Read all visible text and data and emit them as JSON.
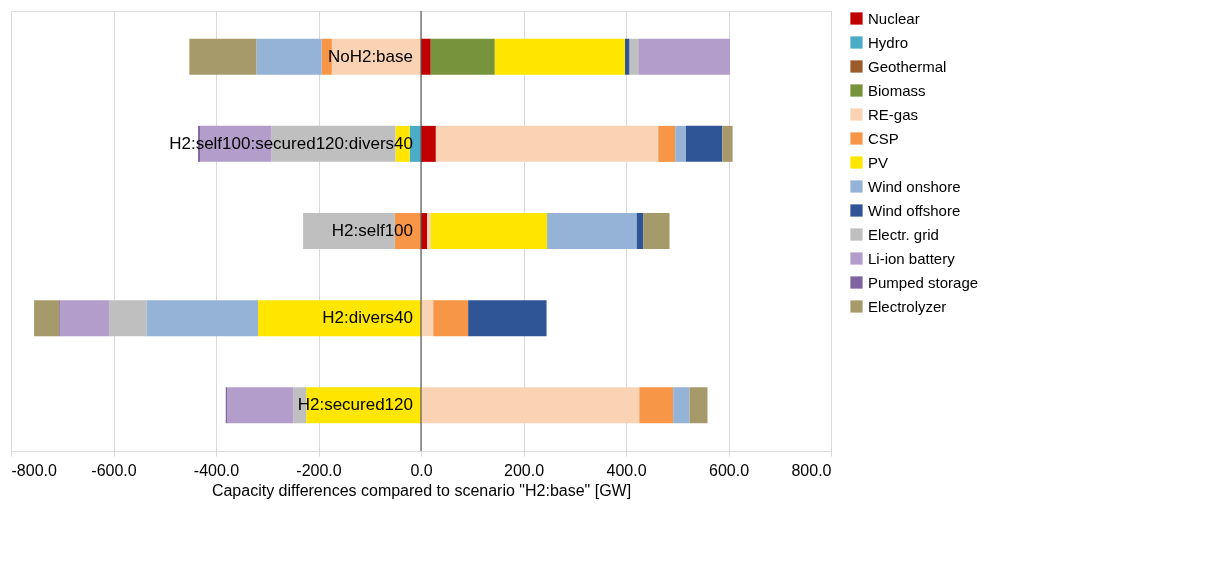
{
  "chart_data": {
    "type": "bar",
    "orientation": "horizontal",
    "stacked": true,
    "xlabel": "Capacity differences compared to scenario \"H2:base\" [GW]",
    "categories": [
      "NoH2:base",
      "H2:self100:secured120:divers40",
      "H2:self100",
      "H2:divers40",
      "H2:secured120"
    ],
    "xlim": [
      -800,
      800
    ],
    "xticks": [
      {
        "value": -800,
        "label": "-800.0"
      },
      {
        "value": -600,
        "label": "-600.0"
      },
      {
        "value": -400,
        "label": "-400.0"
      },
      {
        "value": -200,
        "label": "-200.0"
      },
      {
        "value": 0,
        "label": "0.0"
      },
      {
        "value": 200,
        "label": "200.0"
      },
      {
        "value": 400,
        "label": "400.0"
      },
      {
        "value": 600,
        "label": "600.0"
      },
      {
        "value": 800,
        "label": "800.0"
      }
    ],
    "grid": "x",
    "legend": "right",
    "series": [
      {
        "name": "Nuclear",
        "color": "#c00000",
        "values": [
          19,
          29,
          12,
          null,
          null
        ]
      },
      {
        "name": "Hydro",
        "color": "#4bacc6",
        "values": [
          null,
          -22,
          null,
          null,
          null
        ]
      },
      {
        "name": "Geothermal",
        "color": "#9c5b2a",
        "values": [
          null,
          null,
          null,
          null,
          null
        ]
      },
      {
        "name": "Biomass",
        "color": "#77933c",
        "values": [
          125,
          null,
          null,
          null,
          null
        ]
      },
      {
        "name": "RE-gas",
        "color": "#fad3b4",
        "values": [
          -174,
          434,
          7,
          24,
          426
        ]
      },
      {
        "name": "CSP",
        "color": "#f79646",
        "values": [
          -20,
          33,
          -51,
          68,
          66
        ]
      },
      {
        "name": "PV",
        "color": "#ffe600",
        "values": [
          254,
          -28,
          227,
          -318,
          -224
        ]
      },
      {
        "name": "Wind onshore",
        "color": "#95b3d7",
        "values": [
          -127,
          21,
          175,
          -217,
          32
        ]
      },
      {
        "name": "Wind offshore",
        "color": "#2f5597",
        "values": [
          9,
          71,
          13,
          153,
          null
        ]
      },
      {
        "name": "Electr. grid",
        "color": "#bfbfbf",
        "values": [
          17,
          -242,
          -179,
          -73,
          -25
        ]
      },
      {
        "name": "Li-ion battery",
        "color": "#b39dcb",
        "values": [
          179,
          -139,
          null,
          -96,
          -129
        ]
      },
      {
        "name": "Pumped storage",
        "color": "#8064a2",
        "values": [
          null,
          -4,
          null,
          -2,
          -3
        ]
      },
      {
        "name": "Electrolyzer",
        "color": "#a69a6a",
        "values": [
          -131,
          20,
          51,
          -49,
          35
        ]
      }
    ]
  }
}
